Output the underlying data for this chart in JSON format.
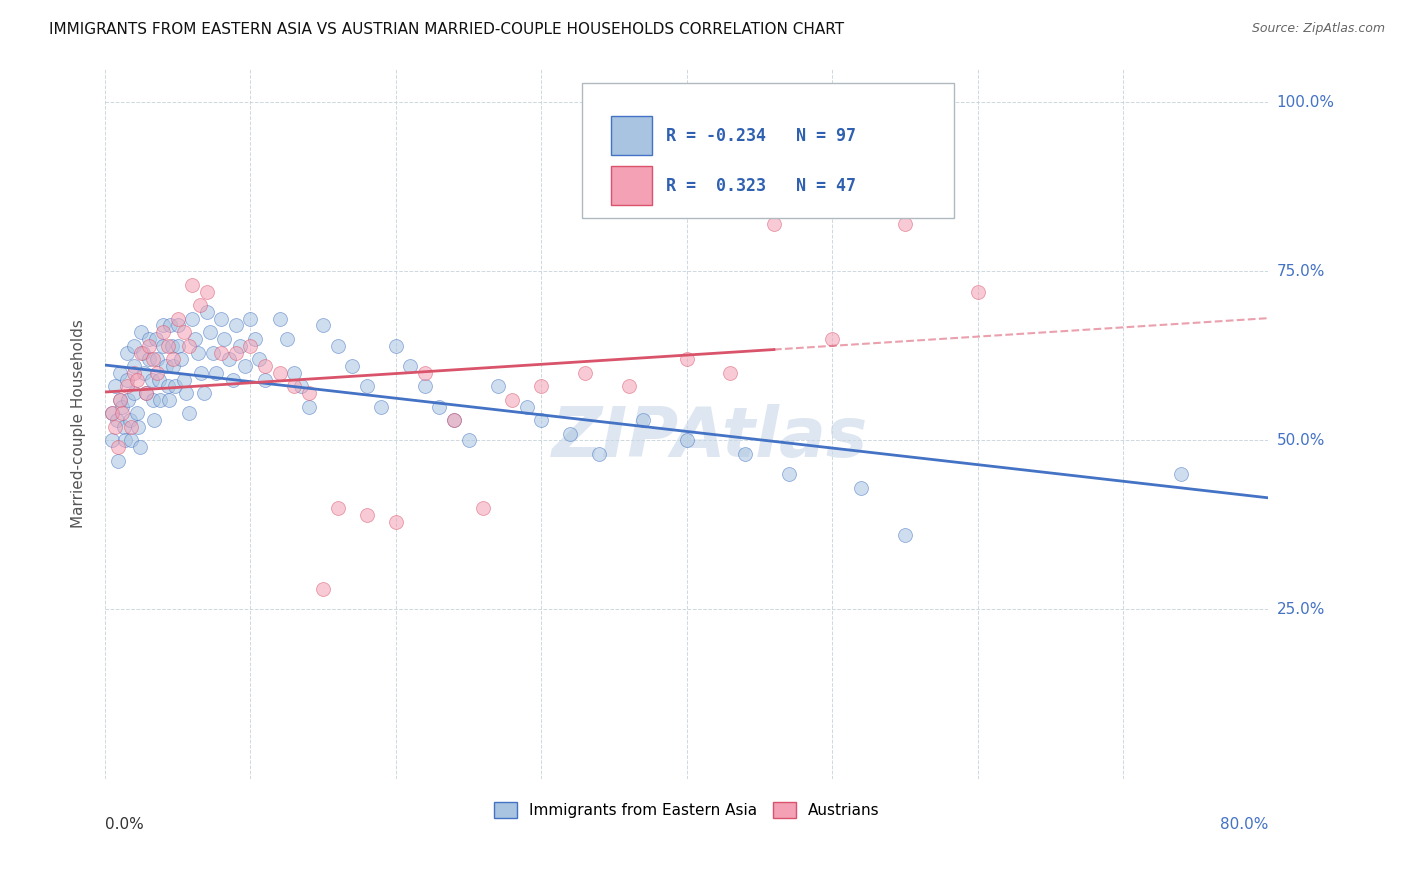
{
  "title": "IMMIGRANTS FROM EASTERN ASIA VS AUSTRIAN MARRIED-COUPLE HOUSEHOLDS CORRELATION CHART",
  "source": "Source: ZipAtlas.com",
  "ylabel": "Married-couple Households",
  "ylabel_ticks": [
    "25.0%",
    "50.0%",
    "75.0%",
    "100.0%"
  ],
  "ylabel_tick_vals": [
    0.25,
    0.5,
    0.75,
    1.0
  ],
  "xlim": [
    0.0,
    0.8
  ],
  "ylim": [
    0.0,
    1.05
  ],
  "blue_R": -0.234,
  "blue_N": 97,
  "pink_R": 0.323,
  "pink_N": 47,
  "legend_label_blue": "Immigrants from Eastern Asia",
  "legend_label_pink": "Austrians",
  "blue_color": "#a8c4e0",
  "pink_color": "#f4a0b5",
  "blue_line_color": "#4472c4",
  "pink_line_color": "#d9536a",
  "watermark": "ZIPAtlas",
  "watermark_color": "#c8d8e8",
  "blue_dots_x": [
    0.005,
    0.005,
    0.007,
    0.008,
    0.009,
    0.01,
    0.01,
    0.012,
    0.013,
    0.014,
    0.015,
    0.015,
    0.016,
    0.017,
    0.018,
    0.02,
    0.02,
    0.02,
    0.022,
    0.023,
    0.024,
    0.025,
    0.026,
    0.027,
    0.028,
    0.03,
    0.03,
    0.032,
    0.033,
    0.034,
    0.035,
    0.036,
    0.037,
    0.038,
    0.04,
    0.04,
    0.042,
    0.043,
    0.044,
    0.045,
    0.046,
    0.047,
    0.048,
    0.05,
    0.05,
    0.052,
    0.054,
    0.056,
    0.058,
    0.06,
    0.062,
    0.064,
    0.066,
    0.068,
    0.07,
    0.072,
    0.074,
    0.076,
    0.08,
    0.082,
    0.085,
    0.088,
    0.09,
    0.093,
    0.096,
    0.1,
    0.103,
    0.106,
    0.11,
    0.12,
    0.125,
    0.13,
    0.135,
    0.14,
    0.15,
    0.16,
    0.17,
    0.18,
    0.19,
    0.2,
    0.21,
    0.22,
    0.23,
    0.24,
    0.25,
    0.27,
    0.29,
    0.3,
    0.32,
    0.34,
    0.37,
    0.4,
    0.44,
    0.47,
    0.52,
    0.55,
    0.74
  ],
  "blue_dots_y": [
    0.54,
    0.5,
    0.58,
    0.53,
    0.47,
    0.6,
    0.56,
    0.55,
    0.52,
    0.5,
    0.63,
    0.59,
    0.56,
    0.53,
    0.5,
    0.64,
    0.61,
    0.57,
    0.54,
    0.52,
    0.49,
    0.66,
    0.63,
    0.6,
    0.57,
    0.65,
    0.62,
    0.59,
    0.56,
    0.53,
    0.65,
    0.62,
    0.59,
    0.56,
    0.67,
    0.64,
    0.61,
    0.58,
    0.56,
    0.67,
    0.64,
    0.61,
    0.58,
    0.67,
    0.64,
    0.62,
    0.59,
    0.57,
    0.54,
    0.68,
    0.65,
    0.63,
    0.6,
    0.57,
    0.69,
    0.66,
    0.63,
    0.6,
    0.68,
    0.65,
    0.62,
    0.59,
    0.67,
    0.64,
    0.61,
    0.68,
    0.65,
    0.62,
    0.59,
    0.68,
    0.65,
    0.6,
    0.58,
    0.55,
    0.67,
    0.64,
    0.61,
    0.58,
    0.55,
    0.64,
    0.61,
    0.58,
    0.55,
    0.53,
    0.5,
    0.58,
    0.55,
    0.53,
    0.51,
    0.48,
    0.53,
    0.5,
    0.48,
    0.45,
    0.43,
    0.36,
    0.45
  ],
  "pink_dots_x": [
    0.005,
    0.007,
    0.009,
    0.01,
    0.012,
    0.015,
    0.018,
    0.02,
    0.022,
    0.025,
    0.028,
    0.03,
    0.033,
    0.036,
    0.04,
    0.043,
    0.047,
    0.05,
    0.054,
    0.058,
    0.06,
    0.065,
    0.07,
    0.08,
    0.09,
    0.1,
    0.11,
    0.12,
    0.13,
    0.14,
    0.15,
    0.16,
    0.18,
    0.2,
    0.22,
    0.24,
    0.26,
    0.28,
    0.3,
    0.33,
    0.36,
    0.4,
    0.43,
    0.46,
    0.5,
    0.55,
    0.6
  ],
  "pink_dots_y": [
    0.54,
    0.52,
    0.49,
    0.56,
    0.54,
    0.58,
    0.52,
    0.6,
    0.59,
    0.63,
    0.57,
    0.64,
    0.62,
    0.6,
    0.66,
    0.64,
    0.62,
    0.68,
    0.66,
    0.64,
    0.73,
    0.7,
    0.72,
    0.63,
    0.63,
    0.64,
    0.61,
    0.6,
    0.58,
    0.57,
    0.28,
    0.4,
    0.39,
    0.38,
    0.6,
    0.53,
    0.4,
    0.56,
    0.58,
    0.6,
    0.58,
    0.62,
    0.6,
    0.82,
    0.65,
    0.82,
    0.72
  ],
  "title_fontsize": 11,
  "source_fontsize": 9,
  "dot_size": 100,
  "dot_alpha": 0.55
}
